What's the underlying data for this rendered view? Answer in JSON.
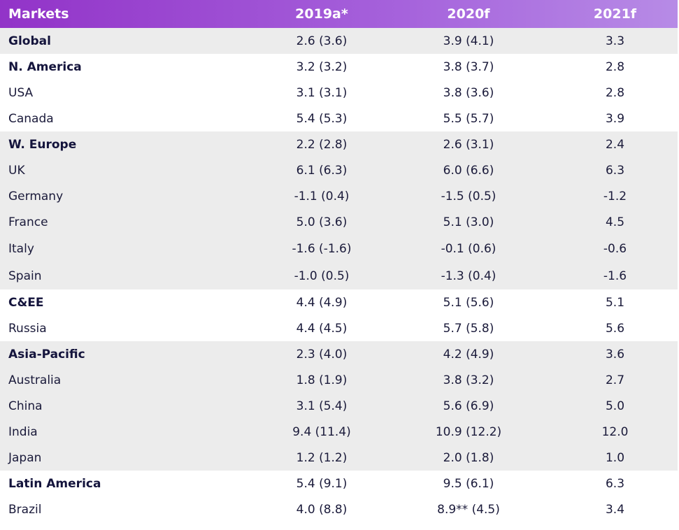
{
  "header": [
    "Markets",
    "2019a*",
    "2020f",
    "2021f"
  ],
  "rows": [
    {
      "market": "Global",
      "y2019": "2.6 (3.6)",
      "y2020": "3.9 (4.1)",
      "y2021": "3.3"
    },
    {
      "market": "N. America",
      "y2019": "3.2 (3.2)",
      "y2020": "3.8 (3.7)",
      "y2021": "2.8"
    },
    {
      "market": "USA",
      "y2019": "3.1 (3.1)",
      "y2020": "3.8 (3.6)",
      "y2021": "2.8"
    },
    {
      "market": "Canada",
      "y2019": "5.4 (5.3)",
      "y2020": "5.5 (5.7)",
      "y2021": "3.9"
    },
    {
      "market": "W. Europe",
      "y2019": "2.2 (2.8)",
      "y2020": "2.6 (3.1)",
      "y2021": "2.4"
    },
    {
      "market": "UK",
      "y2019": "6.1 (6.3)",
      "y2020": "6.0 (6.6)",
      "y2021": "6.3"
    },
    {
      "market": "Germany",
      "y2019": "-1.1 (0.4)",
      "y2020": "-1.5 (0.5)",
      "y2021": "-1.2"
    },
    {
      "market": "France",
      "y2019": "5.0 (3.6)",
      "y2020": "5.1 (3.0)",
      "y2021": "4.5"
    },
    {
      "market": "Italy",
      "y2019": "-1.6 (-1.6)",
      "y2020": "-0.1 (0.6)",
      "y2021": "-0.6"
    },
    {
      "market": "Spain",
      "y2019": "-1.0 (0.5)",
      "y2020": "-1.3 (0.4)",
      "y2021": "-1.6"
    },
    {
      "market": "C&EE",
      "y2019": "4.4 (4.9)",
      "y2020": "5.1 (5.6)",
      "y2021": "5.1"
    },
    {
      "market": "Russia",
      "y2019": "4.4 (4.5)",
      "y2020": "5.7 (5.8)",
      "y2021": "5.6"
    },
    {
      "market": "Asia-Pacific",
      "y2019": "2.3 (4.0)",
      "y2020": "4.2 (4.9)",
      "y2021": "3.6"
    },
    {
      "market": "Australia",
      "y2019": "1.8 (1.9)",
      "y2020": "3.8 (3.2)",
      "y2021": "2.7"
    },
    {
      "market": "China",
      "y2019": "3.1 (5.4)",
      "y2020": "5.6 (6.9)",
      "y2021": "5.0"
    },
    {
      "market": "India",
      "y2019": "9.4 (11.4)",
      "y2020": "10.9 (12.2)",
      "y2021": "12.0"
    },
    {
      "market": "Japan",
      "y2019": "1.2 (1.2)",
      "y2020": "2.0 (1.8)",
      "y2021": "1.0"
    },
    {
      "market": "Latin America",
      "y2019": "5.4 (9.1)",
      "y2020": "9.5 (6.1)",
      "y2021": "6.3"
    },
    {
      "market": "Brazil",
      "y2019": "4.0 (8.8)",
      "y2020": "8.9** (4.5)",
      "y2021": "3.4"
    }
  ],
  "colors": {
    "header_gradient_start": "#9233c8",
    "header_gradient_end": "#b78be6",
    "band_grey": "#ececec",
    "text_dark": "#1a1a3a"
  }
}
